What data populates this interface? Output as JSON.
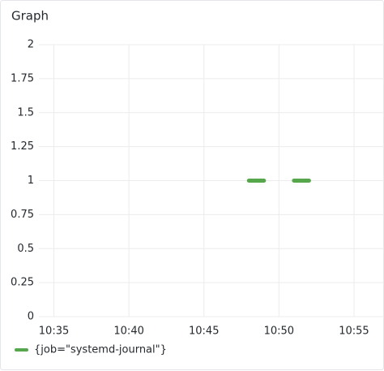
{
  "chart_data": {
    "type": "line",
    "title": "Graph",
    "x": [
      "10:48",
      "10:49",
      "10:50",
      "10:51",
      "10:52"
    ],
    "series": [
      {
        "name": "{job=\"systemd-journal\"}",
        "color": "#56a64b",
        "values": [
          1,
          1,
          null,
          1,
          1
        ]
      }
    ],
    "xlim": [
      "10:34",
      "10:57"
    ],
    "xticks": [
      "10:35",
      "10:40",
      "10:45",
      "10:50",
      "10:55"
    ],
    "ylim": [
      0,
      2
    ],
    "yticks": [
      0,
      0.25,
      0.5,
      0.75,
      1,
      1.25,
      1.5,
      1.75,
      2
    ],
    "grid": true,
    "legend": "bottom"
  }
}
